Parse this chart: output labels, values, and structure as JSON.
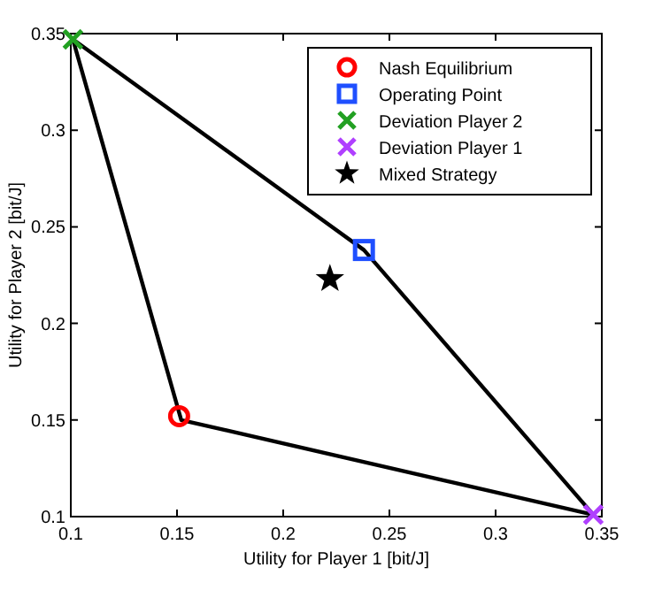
{
  "chart_data": {
    "type": "scatter",
    "xlabel": "Utility for Player 1 [bit/J]",
    "ylabel": "Utility for Player 2 [bit/J]",
    "xlim": [
      0.1,
      0.35
    ],
    "ylim": [
      0.1,
      0.35
    ],
    "xticks": [
      0.1,
      0.15,
      0.2,
      0.25,
      0.3,
      0.35
    ],
    "yticks": [
      0.1,
      0.15,
      0.2,
      0.25,
      0.3,
      0.35
    ],
    "grid": false,
    "legend": "top right",
    "series": [
      {
        "type": "line",
        "color": "#000000",
        "marker": "none",
        "line_style": "solid",
        "x": [
          0.101,
          0.238,
          0.346
        ],
        "values": [
          0.347,
          0.238,
          0.101
        ]
      },
      {
        "type": "line",
        "color": "#000000",
        "marker": "none",
        "line_style": "solid",
        "x": [
          0.101,
          0.152,
          0.346
        ],
        "values": [
          0.347,
          0.15,
          0.101
        ]
      },
      {
        "name": "Nash Equilibrium",
        "color": "#ff0000",
        "marker": "circle",
        "x": [
          0.151
        ],
        "values": [
          0.152
        ]
      },
      {
        "name": "Operating Point",
        "color": "#1f4fff",
        "marker": "square",
        "x": [
          0.238
        ],
        "values": [
          0.238
        ]
      },
      {
        "name": "Deviation Player 2",
        "color": "#22a022",
        "marker": "cross",
        "x": [
          0.101
        ],
        "values": [
          0.347
        ]
      },
      {
        "name": "Deviation Player 1",
        "color": "#b040ff",
        "marker": "cross",
        "x": [
          0.346
        ],
        "values": [
          0.101
        ]
      },
      {
        "name": "Mixed Strategy",
        "color": "#000000",
        "marker": "star",
        "x": [
          0.222
        ],
        "values": [
          0.223
        ]
      }
    ]
  }
}
